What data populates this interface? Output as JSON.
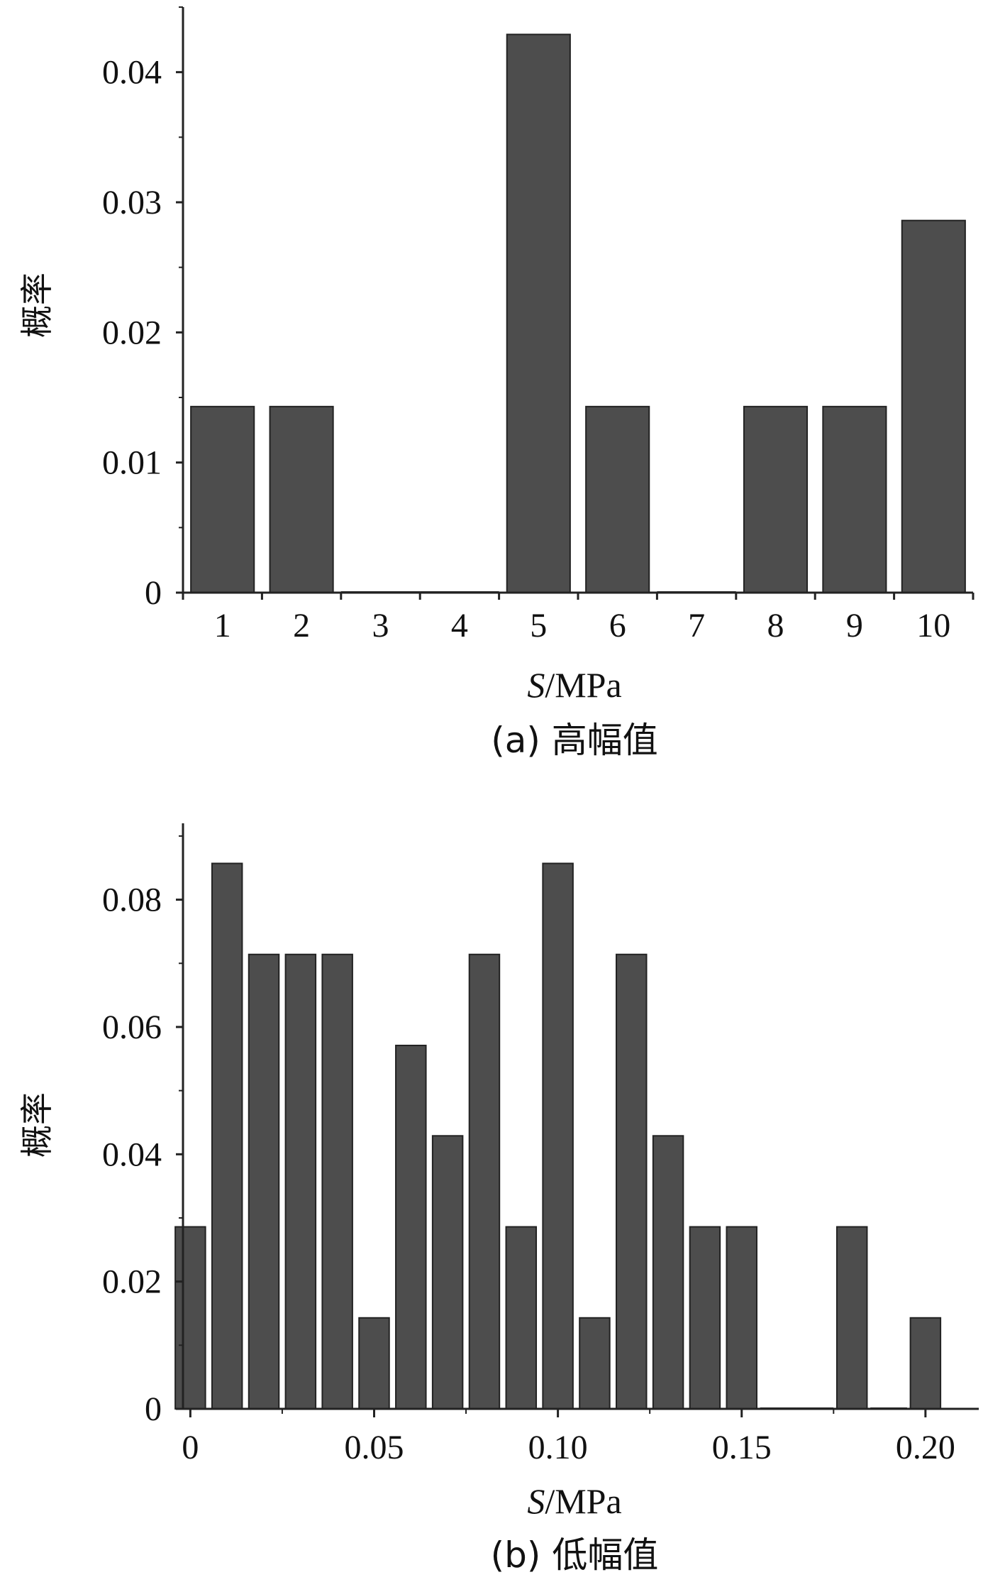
{
  "chart_data": [
    {
      "type": "bar",
      "title": "",
      "caption": "(a) 高幅值",
      "xlabel_italic": "S",
      "xlabel_rest": "/MPa",
      "ylabel": "概率",
      "ylim": [
        0,
        0.045
      ],
      "yticks": [
        0,
        0.01,
        0.02,
        0.03,
        0.04
      ],
      "ytick_labels": [
        "0",
        "0.01",
        "0.02",
        "0.03",
        "0.04"
      ],
      "categories": [
        "1",
        "2",
        "3",
        "4",
        "5",
        "6",
        "7",
        "8",
        "9",
        "10"
      ],
      "values": [
        0.0143,
        0.0143,
        0,
        0,
        0.0429,
        0.0143,
        0,
        0.0143,
        0.0143,
        0.0286
      ],
      "bar_color": "#4d4d4d",
      "grid": false
    },
    {
      "type": "bar",
      "title": "",
      "caption": "(b) 低幅值",
      "xlabel_italic": "S",
      "xlabel_rest": "/MPa",
      "ylabel": "概率",
      "ylim": [
        0,
        0.092
      ],
      "xlim": [
        -0.002,
        0.2145
      ],
      "yticks": [
        0,
        0.02,
        0.04,
        0.06,
        0.08
      ],
      "ytick_labels": [
        "0",
        "0.02",
        "0.04",
        "0.06",
        "0.08"
      ],
      "xticks": [
        0,
        0.05,
        0.1,
        0.15,
        0.2
      ],
      "xtick_labels": [
        "0",
        "0.05",
        "0.10",
        "0.15",
        "0.20"
      ],
      "bin_width": 0.01,
      "x": [
        0,
        0.01,
        0.02,
        0.03,
        0.04,
        0.05,
        0.06,
        0.07,
        0.08,
        0.09,
        0.1,
        0.11,
        0.12,
        0.13,
        0.14,
        0.15,
        0.16,
        0.17,
        0.18,
        0.19,
        0.2
      ],
      "values": [
        0.0286,
        0.0857,
        0.0714,
        0.0714,
        0.0714,
        0.0143,
        0.0571,
        0.0429,
        0.0714,
        0.0286,
        0.0857,
        0.0143,
        0.0714,
        0.0429,
        0.0286,
        0.0286,
        0,
        0,
        0.0286,
        0,
        0.0143
      ],
      "bar_color": "#4d4d4d",
      "grid": false
    }
  ]
}
